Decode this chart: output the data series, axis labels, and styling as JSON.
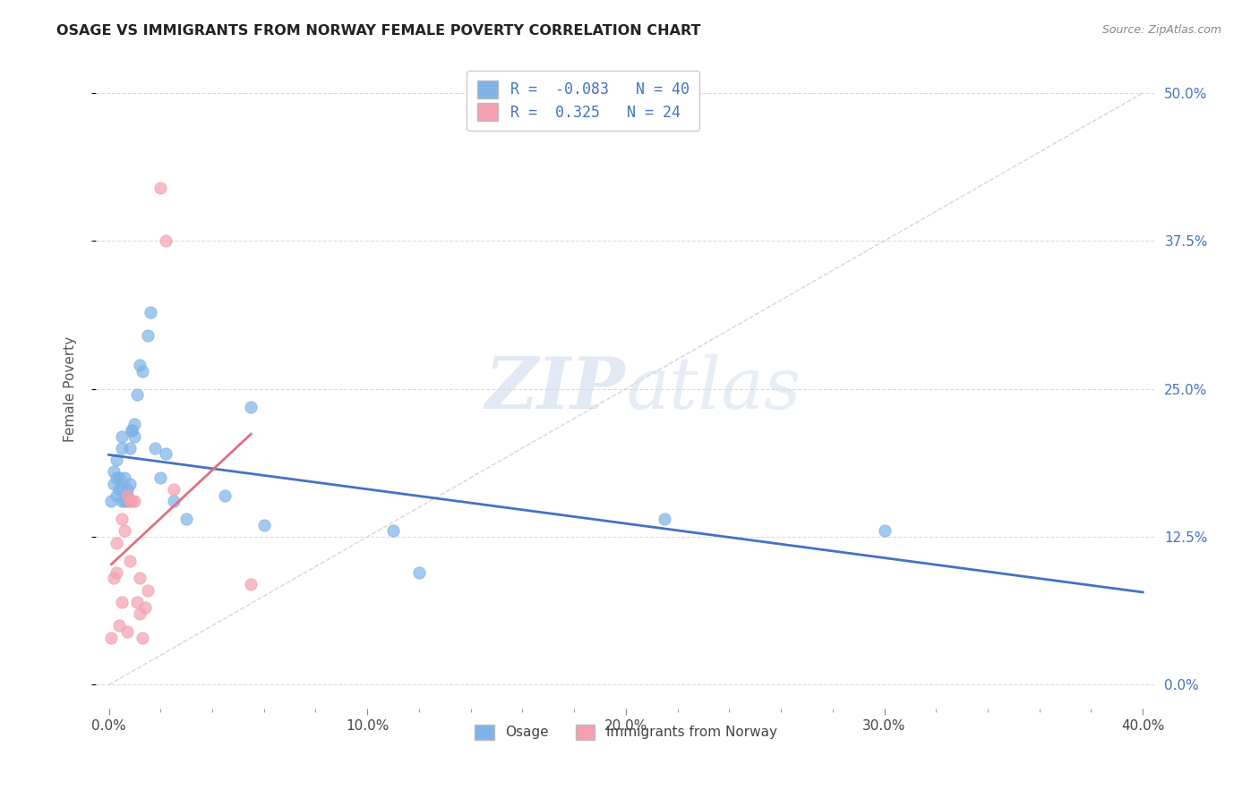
{
  "title": "OSAGE VS IMMIGRANTS FROM NORWAY FEMALE POVERTY CORRELATION CHART",
  "source": "Source: ZipAtlas.com",
  "xlabel_ticks": [
    "0.0%",
    "",
    "",
    "",
    "10.0%",
    "",
    "",
    "",
    "",
    "20.0%",
    "",
    "",
    "",
    "",
    "30.0%",
    "",
    "",
    "",
    "",
    "40.0%"
  ],
  "xlabel_vals": [
    0.0,
    0.02,
    0.04,
    0.06,
    0.08,
    0.1,
    0.12,
    0.14,
    0.16,
    0.18,
    0.2,
    0.22,
    0.24,
    0.26,
    0.28,
    0.3,
    0.32,
    0.34,
    0.36,
    0.38
  ],
  "xlabel_major": [
    0.0,
    0.1,
    0.2,
    0.3,
    0.4
  ],
  "xlabel_major_labels": [
    "0.0%",
    "10.0%",
    "20.0%",
    "30.0%",
    "40.0%"
  ],
  "ylabel": "Female Poverty",
  "ylabel_ticks_right": [
    "0.0%",
    "12.5%",
    "25.0%",
    "37.5%",
    "50.0%"
  ],
  "ylabel_vals": [
    0.0,
    0.125,
    0.25,
    0.375,
    0.5
  ],
  "xlim": [
    -0.003,
    0.4
  ],
  "ylim": [
    -0.025,
    0.52
  ],
  "osage_R": -0.083,
  "osage_N": 40,
  "norway_R": 0.325,
  "norway_N": 24,
  "osage_color": "#7eb3e8",
  "norway_color": "#f4a0b0",
  "trend_osage_color": "#4472C4",
  "trend_norway_color": "#e07080",
  "watermark_zip": "ZIP",
  "watermark_atlas": "atlas",
  "legend_labels": [
    "Osage",
    "Immigrants from Norway"
  ],
  "osage_x": [
    0.001,
    0.002,
    0.002,
    0.003,
    0.003,
    0.003,
    0.004,
    0.004,
    0.005,
    0.005,
    0.005,
    0.005,
    0.006,
    0.006,
    0.007,
    0.007,
    0.007,
    0.008,
    0.008,
    0.009,
    0.009,
    0.01,
    0.01,
    0.011,
    0.012,
    0.013,
    0.015,
    0.016,
    0.018,
    0.02,
    0.022,
    0.025,
    0.03,
    0.045,
    0.055,
    0.06,
    0.11,
    0.12,
    0.215,
    0.3
  ],
  "osage_y": [
    0.155,
    0.17,
    0.18,
    0.175,
    0.19,
    0.16,
    0.175,
    0.165,
    0.165,
    0.155,
    0.2,
    0.21,
    0.155,
    0.175,
    0.165,
    0.155,
    0.16,
    0.17,
    0.2,
    0.215,
    0.215,
    0.22,
    0.21,
    0.245,
    0.27,
    0.265,
    0.295,
    0.315,
    0.2,
    0.175,
    0.195,
    0.155,
    0.14,
    0.16,
    0.235,
    0.135,
    0.13,
    0.095,
    0.14,
    0.13
  ],
  "norway_x": [
    0.001,
    0.002,
    0.003,
    0.003,
    0.004,
    0.005,
    0.005,
    0.006,
    0.007,
    0.007,
    0.008,
    0.008,
    0.009,
    0.01,
    0.011,
    0.012,
    0.012,
    0.013,
    0.014,
    0.015,
    0.02,
    0.022,
    0.025,
    0.055
  ],
  "norway_y": [
    0.04,
    0.09,
    0.12,
    0.095,
    0.05,
    0.07,
    0.14,
    0.13,
    0.045,
    0.16,
    0.105,
    0.155,
    0.155,
    0.155,
    0.07,
    0.06,
    0.09,
    0.04,
    0.065,
    0.08,
    0.42,
    0.375,
    0.165,
    0.085
  ]
}
